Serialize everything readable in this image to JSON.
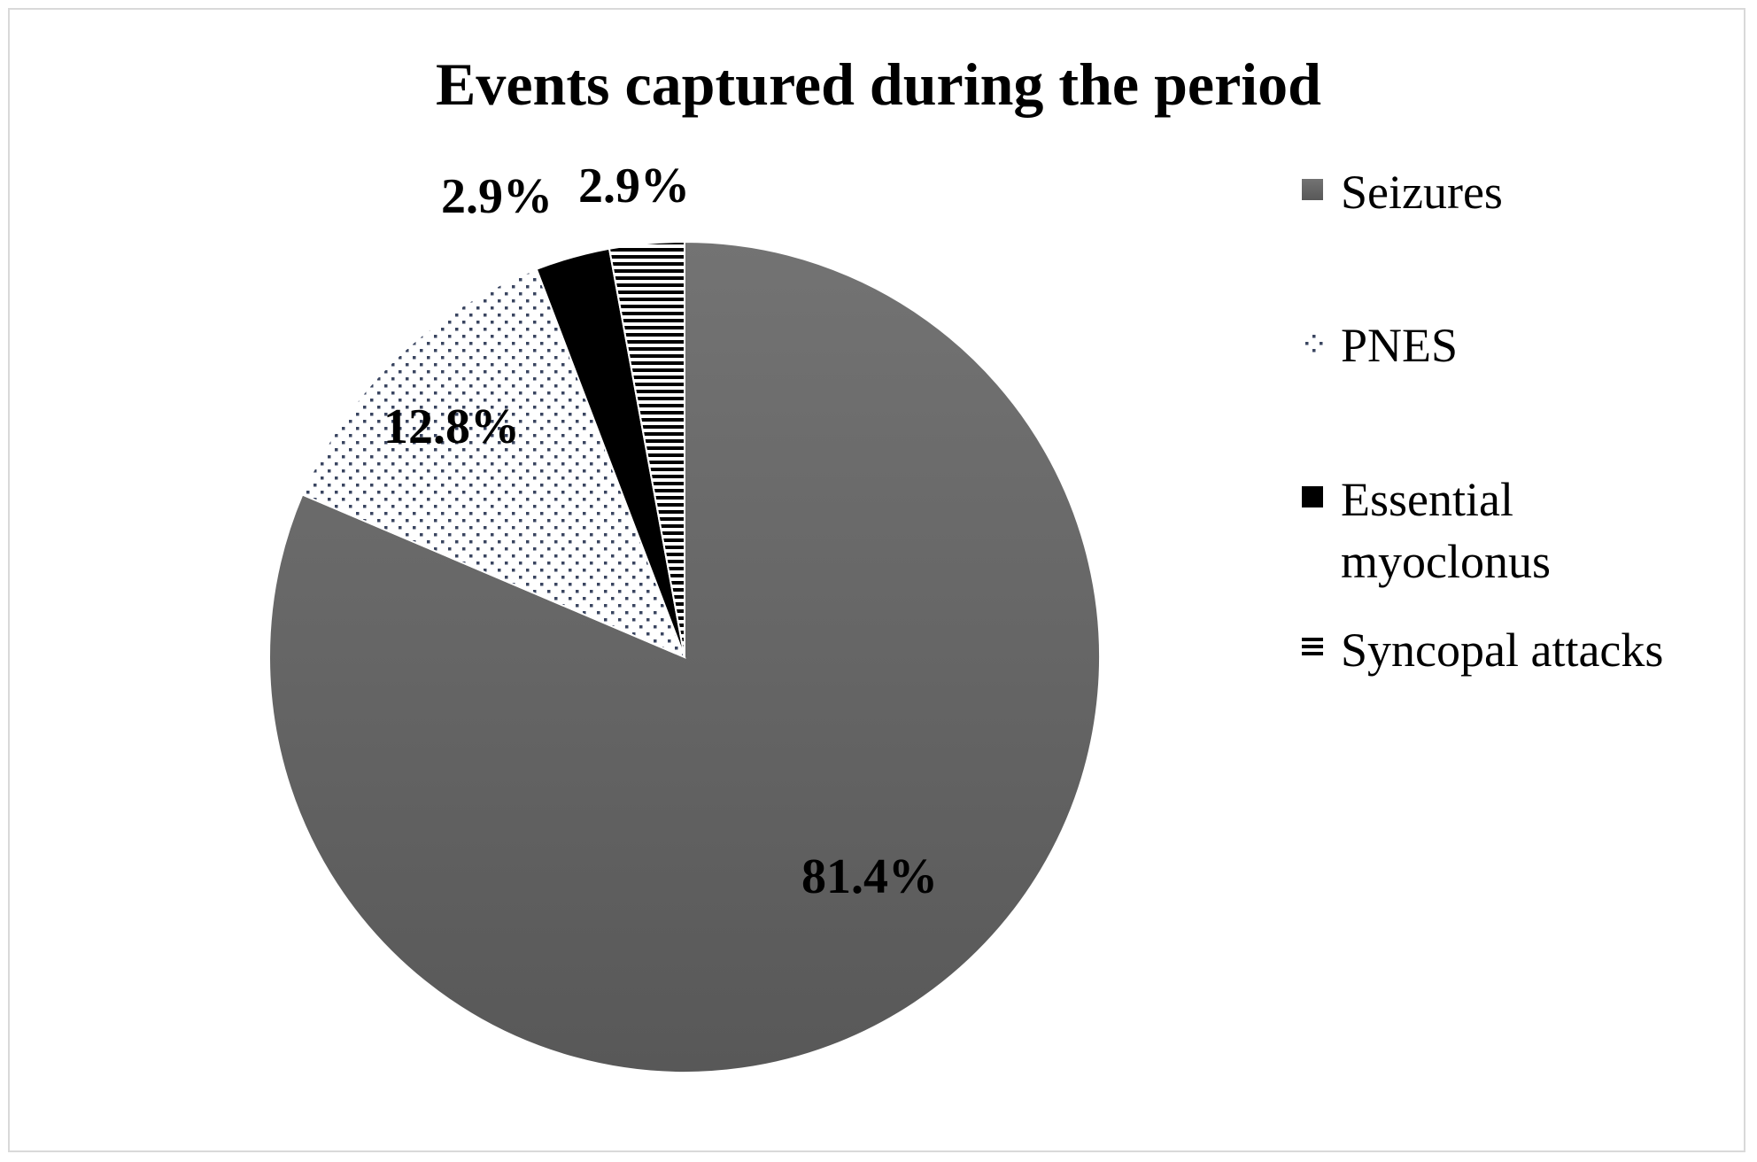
{
  "chart_data": {
    "type": "pie",
    "title": "Events captured during the period",
    "categories": [
      "Seizures",
      "PNES",
      "Essential myoclonus",
      "Syncopal attacks"
    ],
    "values": [
      81.4,
      12.8,
      2.9,
      2.9
    ],
    "data_labels": [
      "81.4%",
      "12.8%",
      "2.9%",
      "2.9%"
    ],
    "legend_labels": [
      [
        "Seizures"
      ],
      [
        "PNES"
      ],
      [
        "Essential",
        "myoclonus"
      ],
      [
        "Syncopal attacks"
      ]
    ],
    "fills": [
      "solid-gray",
      "dotted",
      "solid-black",
      "horizontal-stripes"
    ],
    "colors": {
      "seizures_top": "#737373",
      "seizures_bottom": "#585858",
      "black": "#000000",
      "dots": "#3a4560",
      "frame": "#d9d9d9"
    },
    "start_angle": "12 o'clock, clockwise",
    "legend_position": "right"
  }
}
